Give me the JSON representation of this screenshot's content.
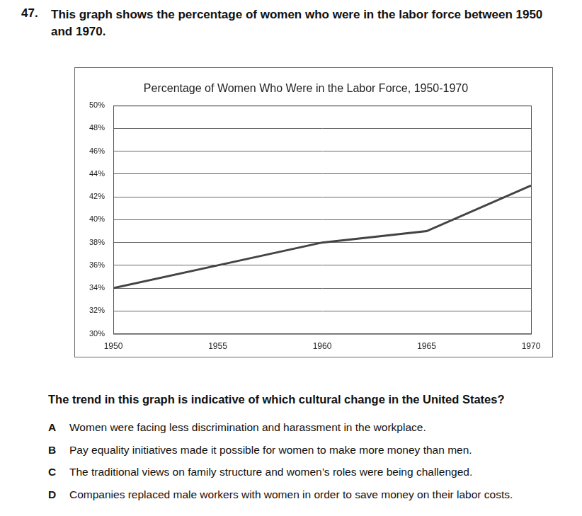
{
  "number": "47.",
  "prompt": "This graph shows the percentage of women who were in the labor force between 1950 and 1970.",
  "chart_data": {
    "type": "line",
    "title": "Percentage of Women Who Were in the Labor Force, 1950-1970",
    "x": [
      1950,
      1955,
      1960,
      1965,
      1970
    ],
    "values": [
      34,
      36,
      38,
      39,
      43
    ],
    "color": "#444444",
    "marker": "none",
    "line_style": "solid",
    "xlim": [
      1950,
      1970
    ],
    "xticks": [
      1950,
      1955,
      1960,
      1965,
      1970
    ],
    "ylim": [
      30,
      50
    ],
    "yticks": [
      {
        "value": 30,
        "label": "30%"
      },
      {
        "value": 32,
        "label": "32%"
      },
      {
        "value": 34,
        "label": "34%"
      },
      {
        "value": 36,
        "label": "36%"
      },
      {
        "value": 38,
        "label": "38%"
      },
      {
        "value": 40,
        "label": "40%"
      },
      {
        "value": 42,
        "label": "42%"
      },
      {
        "value": 44,
        "label": "44%"
      },
      {
        "value": 46,
        "label": "46%"
      },
      {
        "value": 48,
        "label": "48%"
      },
      {
        "value": 50,
        "label": "50%"
      }
    ],
    "grid": true
  },
  "question": "The trend in this graph is indicative of which cultural change in the United States?",
  "choices": [
    {
      "letter": "A",
      "text": "Women were facing less discrimination and harassment in the workplace."
    },
    {
      "letter": "B",
      "text": "Pay equality initiatives made it possible for women to make more money than men."
    },
    {
      "letter": "C",
      "text": "The traditional views on family structure and women’s roles were being challenged."
    },
    {
      "letter": "D",
      "text": "Companies replaced male workers with women in order to save money on their labor costs."
    }
  ]
}
